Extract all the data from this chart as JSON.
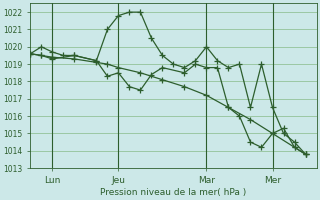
{
  "bg_color": "#cce8e8",
  "grid_color": "#88bb88",
  "line_color": "#2d5e2d",
  "ylim": [
    1013,
    1022.5
  ],
  "yticks": [
    1013,
    1014,
    1015,
    1016,
    1017,
    1018,
    1019,
    1020,
    1021,
    1022
  ],
  "xlabel": "Pression niveau de la mer( hPa )",
  "xtick_labels": [
    "Lun",
    "Jeu",
    "Mar",
    "Mer"
  ],
  "xtick_positions": [
    1,
    4,
    8,
    11
  ],
  "xlim": [
    0,
    13
  ],
  "series": [
    {
      "x": [
        0,
        0.5,
        1,
        1.5,
        2,
        3,
        3.5,
        4,
        4.5,
        5,
        5.5,
        6,
        6.5,
        7,
        7.5,
        8,
        8.5,
        9,
        9.5,
        10,
        10.5,
        11,
        11.5,
        12,
        12.5
      ],
      "y": [
        1019.6,
        1020.0,
        1019.7,
        1019.5,
        1019.5,
        1019.2,
        1021.0,
        1021.8,
        1022.0,
        1022.0,
        1020.5,
        1019.5,
        1019.0,
        1018.8,
        1019.2,
        1020.0,
        1019.2,
        1018.8,
        1019.0,
        1016.5,
        1019.0,
        1016.5,
        1015.0,
        1014.5,
        1013.8
      ]
    },
    {
      "x": [
        0,
        0.5,
        1,
        2,
        3,
        3.5,
        4,
        4.5,
        5,
        5.5,
        6,
        7,
        7.5,
        8,
        8.5,
        9,
        9.5,
        10,
        10.5,
        11,
        11.5,
        12,
        12.5
      ],
      "y": [
        1019.6,
        1019.5,
        1019.3,
        1019.5,
        1019.2,
        1018.3,
        1018.5,
        1017.7,
        1017.5,
        1018.4,
        1018.8,
        1018.5,
        1019.0,
        1018.8,
        1018.8,
        1016.5,
        1016.0,
        1014.5,
        1014.2,
        1015.0,
        1015.3,
        1014.2,
        1013.8
      ]
    },
    {
      "x": [
        0,
        0.5,
        1,
        2,
        3,
        3.5,
        4,
        5,
        6,
        7,
        8,
        9,
        10,
        11,
        12,
        12.5
      ],
      "y": [
        1019.6,
        1019.5,
        1019.4,
        1019.3,
        1019.1,
        1019.0,
        1018.8,
        1018.5,
        1018.1,
        1017.7,
        1017.2,
        1016.5,
        1015.8,
        1015.0,
        1014.2,
        1013.8
      ]
    }
  ],
  "vlines": [
    1,
    4,
    8,
    11
  ]
}
